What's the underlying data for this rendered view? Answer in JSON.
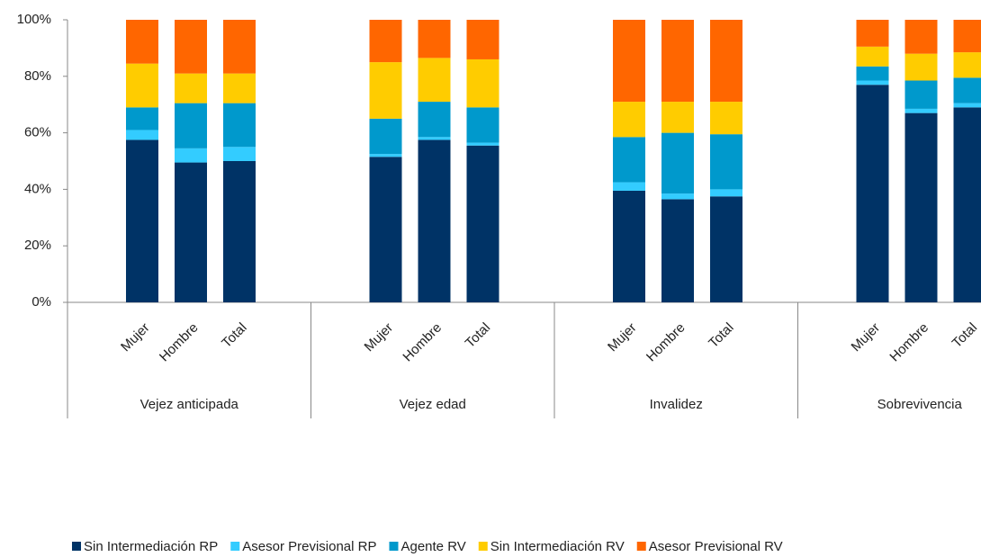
{
  "chart_data": {
    "type": "stacked_bar_100",
    "groups": [
      "Vejez anticipada",
      "Vejez edad",
      "Invalidez",
      "Sobrevivencia"
    ],
    "categories": [
      "Mujer",
      "Hombre",
      "Total",
      "Mujer",
      "Hombre",
      "Total",
      "Mujer",
      "Hombre",
      "Total",
      "Mujer",
      "Hombre",
      "Total"
    ],
    "series": [
      {
        "name": "Sin Intermediación RP",
        "color": "#003366",
        "values": [
          57.5,
          49.5,
          50,
          51.5,
          57.5,
          55.5,
          39.5,
          36.5,
          37.5,
          77,
          67,
          69
        ]
      },
      {
        "name": "Asesor Previsional RP",
        "color": "#33ccff",
        "values": [
          3.5,
          5,
          5,
          1,
          1,
          1,
          3,
          2,
          2.5,
          1.5,
          1.5,
          1.5
        ]
      },
      {
        "name": "Agente RV",
        "color": "#0099cc",
        "values": [
          8,
          16,
          15.5,
          12.5,
          12.5,
          12.5,
          16,
          21.5,
          19.5,
          5,
          10,
          9
        ]
      },
      {
        "name": "Sin Intermediación RV",
        "color": "#ffcc00",
        "values": [
          15.5,
          10.5,
          10.5,
          20,
          15.5,
          17,
          12.5,
          11,
          11.5,
          7,
          9.5,
          9
        ]
      },
      {
        "name": "Asesor Previsional RV",
        "color": "#ff6600",
        "values": [
          15.5,
          19,
          19,
          15,
          13.5,
          14,
          29,
          29,
          29,
          9.5,
          12,
          11.5
        ]
      }
    ],
    "ylim": [
      0,
      100
    ],
    "yticks": [
      {
        "value": 0,
        "label": "0%"
      },
      {
        "value": 20,
        "label": "20%"
      },
      {
        "value": 40,
        "label": "40%"
      },
      {
        "value": 60,
        "label": "60%"
      },
      {
        "value": 80,
        "label": "80%"
      },
      {
        "value": 100,
        "label": "100%"
      }
    ]
  }
}
